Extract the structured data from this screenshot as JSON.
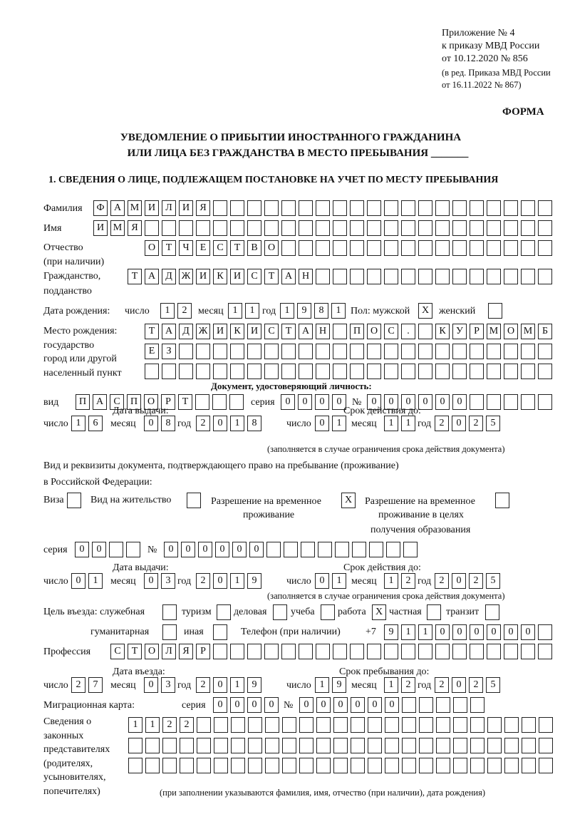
{
  "header": {
    "appendix": "Приложение № 4",
    "order": "к приказу МВД России",
    "order_date": "от 10.12.2020 № 856",
    "edition1": "(в ред. Приказа МВД России",
    "edition2": "от 16.11.2022 № 867)",
    "form": "ФОРМА",
    "title1": "УВЕДОМЛЕНИЕ О ПРИБЫТИИ ИНОСТРАННОГО ГРАЖДАНИНА",
    "title2": "ИЛИ ЛИЦА БЕЗ ГРАЖДАНСТВА В МЕСТО ПРЕБЫВАНИЯ _______",
    "section1": "1. СВЕДЕНИЯ О ЛИЦЕ, ПОДЛЕЖАЩЕМ ПОСТАНОВКЕ НА УЧЕТ ПО МЕСТУ ПРЕБЫВАНИЯ"
  },
  "labels": {
    "surname": "Фамилия",
    "name": "Имя",
    "patronymic": "Отчество",
    "patronymic2": "(при наличии)",
    "citizenship": "Гражданство,",
    "citizenship2": "подданство",
    "birth_date": "Дата рождения:",
    "day": "число",
    "month": "месяц",
    "year": "год",
    "sex": "Пол: мужской",
    "female": "женский",
    "birth_place": "Место рождения:",
    "state": "государство",
    "city": "город или другой",
    "settlement": "населенный пункт",
    "id_doc": "Документ, удостоверяющий личность:",
    "kind": "вид",
    "series": "серия",
    "number": "№",
    "issue_date": "Дата выдачи:",
    "valid_until": "Срок действия до:",
    "valid_note": "(заполняется в случае ограничения срока действия документа)",
    "right_doc1": "Вид и реквизиты документа, подтверждающего право на пребывание (проживание)",
    "right_doc2": "в Российской Федерации:",
    "visa": "Виза",
    "residence": "Вид на жительство",
    "temp_res1": "Разрешение на временное",
    "temp_res2": "проживание",
    "temp_edu1": "Разрешение на временное",
    "temp_edu2": "проживание в целях",
    "temp_edu3": "получения образования",
    "purpose": "Цель въезда: служебная",
    "tourism": "туризм",
    "business": "деловая",
    "study": "учеба",
    "work": "работа",
    "private": "частная",
    "transit": "транзит",
    "humanitarian": "гуманитарная",
    "other": "иная",
    "phone": "Телефон (при наличии)",
    "phone_prefix": "+7",
    "profession": "Профессия",
    "entry_date": "Дата въезда:",
    "stay_until": "Срок пребывания до:",
    "migration_card": "Миграционная карта:",
    "reps1": "Сведения о",
    "reps2": "законных",
    "reps3": "представителях",
    "reps4": "(родителях,",
    "reps5": "усыновителях,",
    "reps6": "попечителях)",
    "reps_note": "(при заполнении указываются фамилия, имя, отчество (при наличии), дата рождения)"
  },
  "person": {
    "surname": "ФАМИЛИЯ",
    "name": "ИМЯ",
    "patronymic": "ОТЧЕСТВО",
    "citizenship": "ТАДЖИКИСТАН",
    "birth_day": "12",
    "birth_month": "11",
    "birth_year": "1981",
    "male": "X",
    "female": "",
    "birth_place1": "ТАДЖИКИСТАН ПОС. КУРМОМБ",
    "birth_place2": "ЕЗ",
    "birth_place3": ""
  },
  "id_document": {
    "kind": "ПАСПОРТ",
    "series": "0000",
    "number": "000000",
    "issue_day": "16",
    "issue_month": "08",
    "issue_year": "2018",
    "valid_day": "01",
    "valid_month": "11",
    "valid_year": "2025"
  },
  "right_document": {
    "visa": "",
    "residence": "",
    "temp_residence": "X",
    "temp_residence_edu": "",
    "series": "00",
    "number": "000000",
    "issue_day": "01",
    "issue_month": "03",
    "issue_year": "2019",
    "valid_day": "01",
    "valid_month": "12",
    "valid_year": "2025"
  },
  "purpose": {
    "official": "",
    "tourism": "",
    "business": "",
    "study": "",
    "work": "X",
    "private": "",
    "transit": "",
    "humanitarian": "",
    "other": ""
  },
  "phone": "911000000",
  "profession": "СТОЛЯР",
  "entry": {
    "day": "27",
    "month": "03",
    "year": "2019",
    "stay_day": "19",
    "stay_month": "12",
    "stay_year": "2025"
  },
  "migration_card": {
    "series": "0000",
    "number": "000000"
  },
  "representatives": {
    "line1": "1122",
    "line2": "",
    "line3": ""
  }
}
